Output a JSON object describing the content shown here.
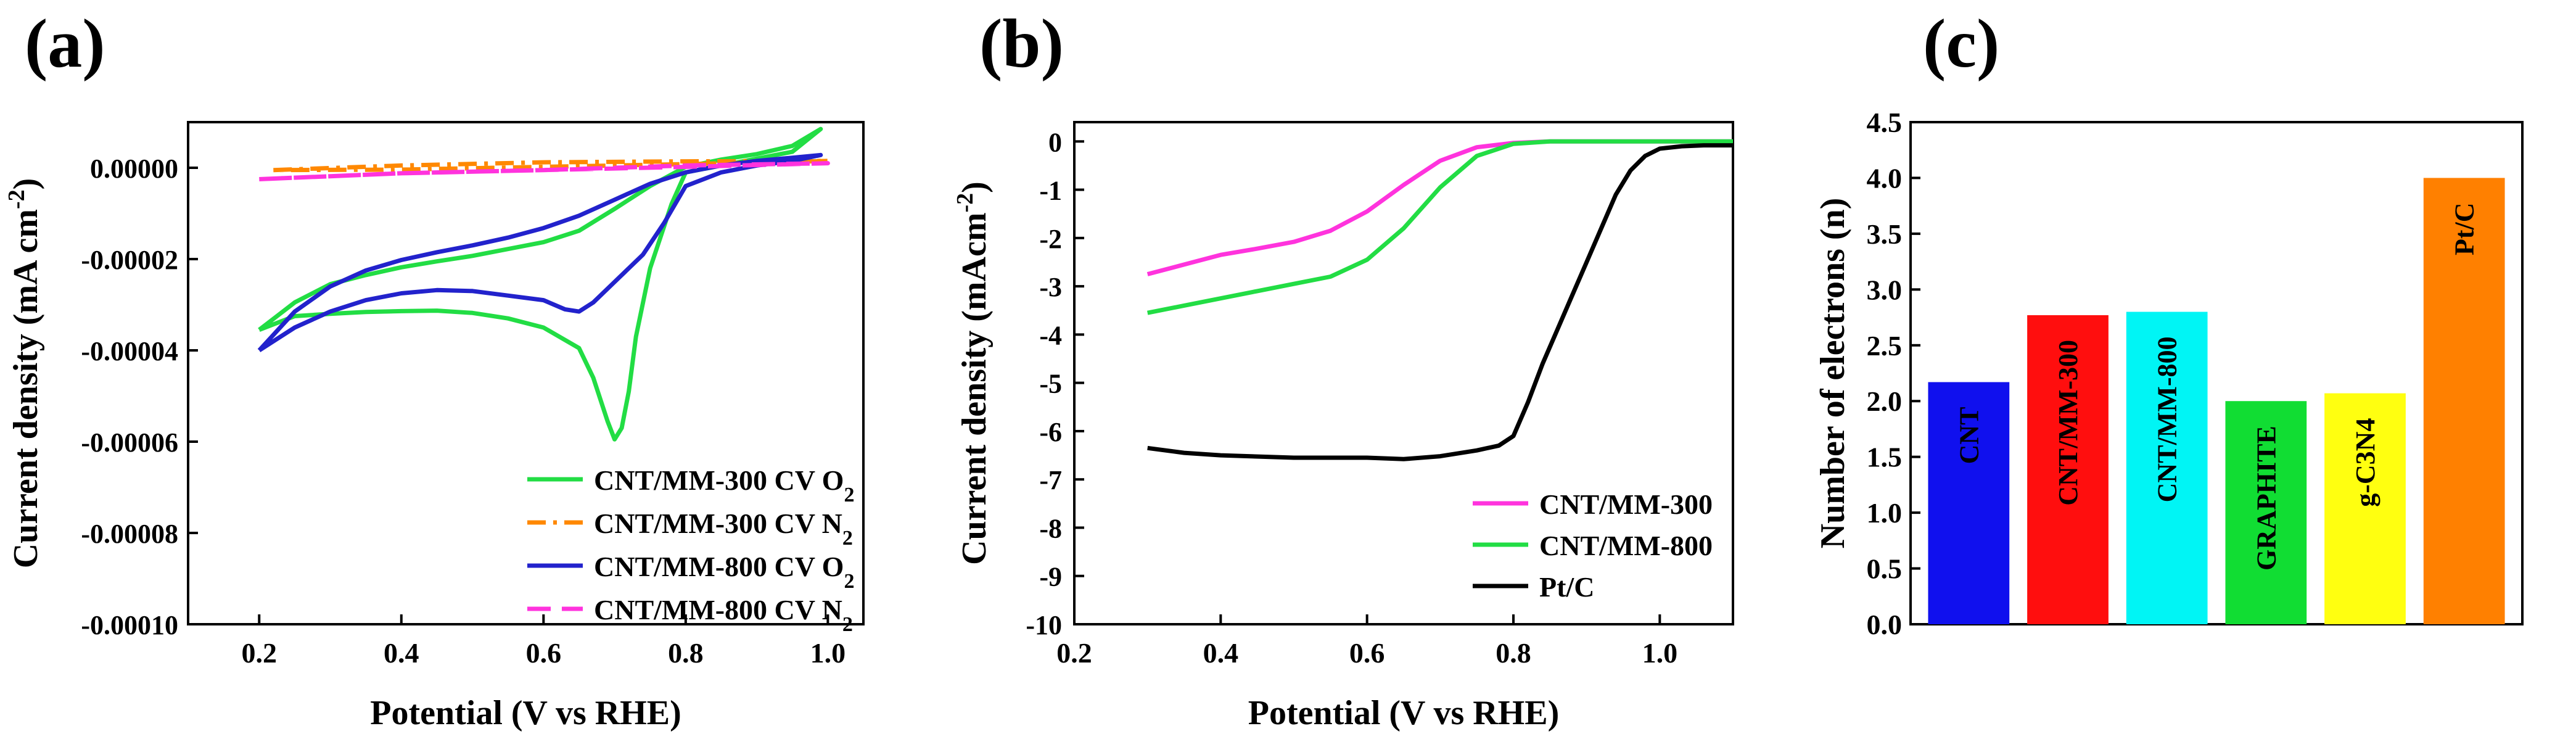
{
  "chart_data": [
    {
      "panel": "(a)",
      "type": "line",
      "xlabel": "Potential (V vs RHE)",
      "ylabel": "Current density (mA cm",
      "ylabel_sup": "-2",
      "ylabel_close": ")",
      "xlim": [
        0.1,
        1.05
      ],
      "ylim": [
        -0.0001,
        1e-05
      ],
      "xticks": [
        0.2,
        0.4,
        0.6,
        0.8,
        1.0
      ],
      "xtick_labels": [
        "0.2",
        "0.4",
        "0.6",
        "0.8",
        "1.0"
      ],
      "yticks": [
        0,
        -2e-05,
        -4e-05,
        -6e-05,
        -8e-05,
        -0.0001
      ],
      "ytick_labels": [
        "0.00000",
        "-0.00002",
        "-0.00004",
        "-0.00006",
        "-0.00008",
        "-0.00010"
      ],
      "legend_position": "bottom-right",
      "series": [
        {
          "name": "CNT/MM-300 CV O",
          "name_sub": "2",
          "color": "#22dd44",
          "dash": "solid",
          "x": [
            0.2,
            0.25,
            0.3,
            0.35,
            0.4,
            0.45,
            0.5,
            0.55,
            0.6,
            0.65,
            0.7,
            0.75,
            0.8,
            0.85,
            0.9,
            0.95,
            0.99,
            0.95,
            0.9,
            0.85,
            0.8,
            0.78,
            0.75,
            0.73,
            0.72,
            0.71,
            0.7,
            0.69,
            0.67,
            0.65,
            0.6,
            0.55,
            0.5,
            0.45,
            0.4,
            0.35,
            0.3,
            0.25,
            0.2
          ],
          "y": [
            -3.55e-05,
            -2.95e-05,
            -2.55e-05,
            -2.35e-05,
            -2.18e-05,
            -2.05e-05,
            -1.93e-05,
            -1.78e-05,
            -1.63e-05,
            -1.38e-05,
            -9e-06,
            -4e-06,
            2e-07,
            1.8e-06,
            3e-06,
            4.8e-06,
            8.5e-06,
            3.5e-06,
            2e-06,
            5e-07,
            -1e-06,
            -8e-06,
            -2.2e-05,
            -3.7e-05,
            -4.9e-05,
            -5.7e-05,
            -5.95e-05,
            -5.55e-05,
            -4.6e-05,
            -3.95e-05,
            -3.5e-05,
            -3.3e-05,
            -3.18e-05,
            -3.13e-05,
            -3.14e-05,
            -3.16e-05,
            -3.2e-05,
            -3.25e-05,
            -3.55e-05
          ]
        },
        {
          "name": "CNT/MM-300 CV N",
          "name_sub": "2",
          "color": "#ff8800",
          "dash": "dashdot",
          "x": [
            0.22,
            0.4,
            0.6,
            0.8,
            1.0,
            0.8,
            0.6,
            0.4,
            0.22
          ],
          "y": [
            -5e-07,
            5e-07,
            1.2e-06,
            1.4e-06,
            1.5e-06,
            8e-07,
            2e-07,
            -4e-07,
            -5e-07
          ]
        },
        {
          "name": "CNT/MM-800 CV O",
          "name_sub": "2",
          "color": "#2222cc",
          "dash": "solid",
          "x": [
            0.2,
            0.25,
            0.3,
            0.35,
            0.4,
            0.45,
            0.5,
            0.55,
            0.6,
            0.65,
            0.7,
            0.75,
            0.8,
            0.85,
            0.9,
            0.95,
            0.99,
            0.95,
            0.9,
            0.85,
            0.8,
            0.77,
            0.74,
            0.7,
            0.67,
            0.65,
            0.63,
            0.6,
            0.55,
            0.5,
            0.45,
            0.4,
            0.35,
            0.3,
            0.25,
            0.2
          ],
          "y": [
            -4e-05,
            -3.15e-05,
            -2.6e-05,
            -2.25e-05,
            -2.02e-05,
            -1.85e-05,
            -1.7e-05,
            -1.53e-05,
            -1.32e-05,
            -1.05e-05,
            -7e-06,
            -3.5e-06,
            -1e-06,
            5e-07,
            1.5e-06,
            2.2e-06,
            2.8e-06,
            1.5e-06,
            5e-07,
            -1e-06,
            -4e-06,
            -1.2e-05,
            -1.9e-05,
            -2.5e-05,
            -2.95e-05,
            -3.15e-05,
            -3.1e-05,
            -2.9e-05,
            -2.8e-05,
            -2.7e-05,
            -2.68e-05,
            -2.75e-05,
            -2.9e-05,
            -3.15e-05,
            -3.5e-05,
            -4e-05
          ]
        },
        {
          "name": "CNT/MM-800 CV N",
          "name_sub": "2",
          "color": "#ff33dd",
          "dash": "dash",
          "x": [
            0.2,
            0.4,
            0.6,
            0.8,
            1.0,
            0.8,
            0.6,
            0.4,
            0.2
          ],
          "y": [
            -2.5e-06,
            -1.2e-06,
            -5e-07,
            2e-07,
            1e-06,
            5e-07,
            -5e-07,
            -1.2e-06,
            -2.5e-06
          ]
        }
      ]
    },
    {
      "panel": "(b)",
      "type": "line",
      "xlabel": "Potential (V vs RHE)",
      "ylabel": "Current density (mAcm",
      "ylabel_sup": "-2",
      "ylabel_close": ")",
      "xlim": [
        0.2,
        1.1
      ],
      "ylim": [
        -10,
        0.4
      ],
      "xticks": [
        0.2,
        0.4,
        0.6,
        0.8,
        1.0
      ],
      "xtick_labels": [
        "0.2",
        "0.4",
        "0.6",
        "0.8",
        "1.0"
      ],
      "yticks": [
        0,
        -1,
        -2,
        -3,
        -4,
        -5,
        -6,
        -7,
        -8,
        -9,
        -10
      ],
      "ytick_labels": [
        "0",
        "-1",
        "-2",
        "-3",
        "-4",
        "-5",
        "-6",
        "-7",
        "-8",
        "-9",
        "-10"
      ],
      "legend_position": "bottom-right",
      "series": [
        {
          "name": "CNT/MM-300",
          "color": "#ff33dd",
          "x": [
            0.3,
            0.35,
            0.4,
            0.45,
            0.5,
            0.55,
            0.6,
            0.65,
            0.7,
            0.75,
            0.8,
            0.85,
            0.9,
            1.0,
            1.1
          ],
          "y": [
            -2.75,
            -2.55,
            -2.35,
            -2.22,
            -2.08,
            -1.85,
            -1.45,
            -0.9,
            -0.4,
            -0.12,
            -0.03,
            0,
            0,
            0,
            0
          ]
        },
        {
          "name": "CNT/MM-800",
          "color": "#22dd44",
          "x": [
            0.3,
            0.35,
            0.4,
            0.45,
            0.5,
            0.55,
            0.6,
            0.65,
            0.7,
            0.75,
            0.8,
            0.85,
            0.9,
            1.0,
            1.1
          ],
          "y": [
            -3.55,
            -3.4,
            -3.25,
            -3.1,
            -2.95,
            -2.8,
            -2.45,
            -1.8,
            -0.95,
            -0.3,
            -0.05,
            0,
            0,
            0,
            0
          ]
        },
        {
          "name": "Pt/C",
          "color": "#000000",
          "x": [
            0.3,
            0.35,
            0.4,
            0.5,
            0.6,
            0.65,
            0.7,
            0.75,
            0.78,
            0.8,
            0.82,
            0.84,
            0.86,
            0.88,
            0.9,
            0.92,
            0.94,
            0.96,
            0.98,
            1.0,
            1.03,
            1.06,
            1.1
          ],
          "y": [
            -6.35,
            -6.45,
            -6.5,
            -6.55,
            -6.55,
            -6.58,
            -6.52,
            -6.4,
            -6.3,
            -6.1,
            -5.4,
            -4.6,
            -3.9,
            -3.2,
            -2.5,
            -1.8,
            -1.1,
            -0.6,
            -0.3,
            -0.15,
            -0.1,
            -0.08,
            -0.08
          ]
        }
      ]
    },
    {
      "panel": "(c)",
      "type": "bar",
      "ylabel": "Number of electrons (n)",
      "ylim": [
        0,
        4.5
      ],
      "yticks": [
        0,
        0.5,
        1,
        1.5,
        2,
        2.5,
        3,
        3.5,
        4,
        4.5
      ],
      "ytick_labels": [
        "0.0",
        "0.5",
        "1.0",
        "1.5",
        "2.0",
        "2.5",
        "3.0",
        "3.5",
        "4.0",
        "4.5"
      ],
      "categories": [
        "CNT",
        "CNT/MM-300",
        "CNT/MM-800",
        "GRAPHITE",
        "g-C3N4",
        "Pt/C"
      ],
      "values": [
        2.17,
        2.77,
        2.8,
        2.0,
        2.07,
        4.0
      ],
      "colors": [
        "#1010ee",
        "#ff0e0e",
        "#00f5f5",
        "#11dd33",
        "#ffff10",
        "#ff8000"
      ]
    }
  ]
}
